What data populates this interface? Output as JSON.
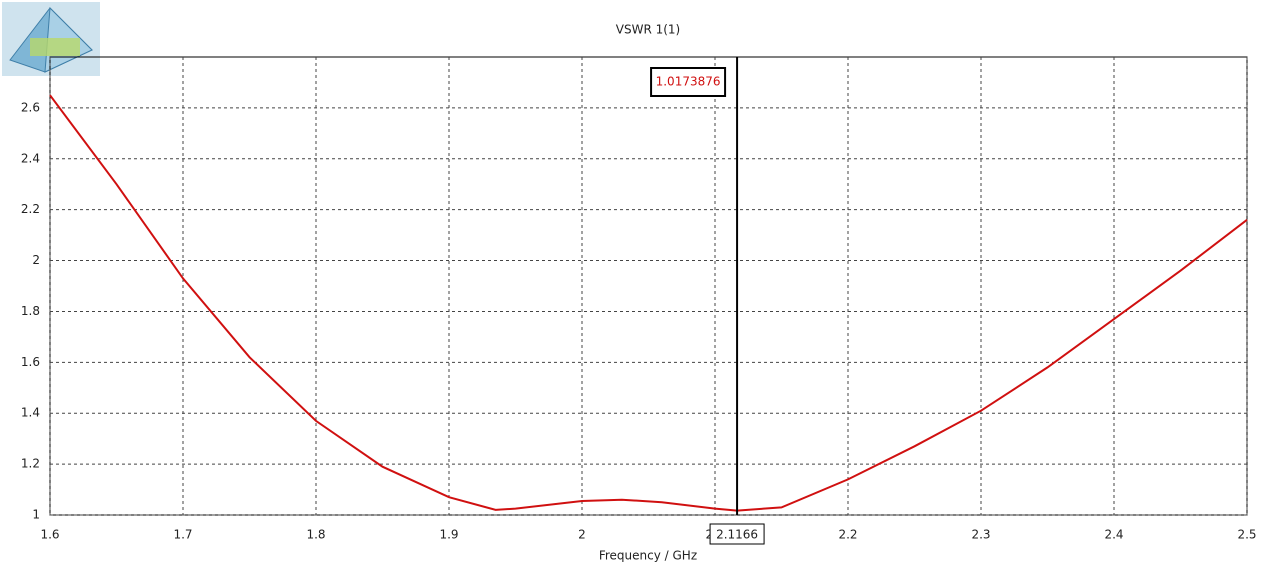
{
  "chart_data": {
    "type": "line",
    "title": "VSWR 1(1)",
    "x_label": "Frequency / GHz",
    "x": [
      1.6,
      1.65,
      1.7,
      1.75,
      1.8,
      1.85,
      1.9,
      1.935,
      1.95,
      2.0,
      2.03,
      2.06,
      2.1,
      2.1166,
      2.15,
      2.2,
      2.25,
      2.3,
      2.35,
      2.4,
      2.45,
      2.5
    ],
    "values": [
      2.65,
      2.3,
      1.93,
      1.62,
      1.37,
      1.19,
      1.07,
      1.02,
      1.025,
      1.055,
      1.06,
      1.05,
      1.025,
      1.0173876,
      1.03,
      1.14,
      1.27,
      1.41,
      1.58,
      1.77,
      1.96,
      2.16
    ],
    "color": "#d01010",
    "xlim": [
      1.6,
      2.5
    ],
    "xticks": [
      1.6,
      1.7,
      1.8,
      1.9,
      2,
      2.1,
      2.2,
      2.3,
      2.4,
      2.5
    ],
    "ylim": [
      1,
      2.8
    ],
    "yticks": [
      1,
      1.2,
      1.4,
      1.6,
      1.8,
      2,
      2.2,
      2.4,
      2.6
    ],
    "grid": true,
    "marker": {
      "x": 2.1166,
      "y": 1.0173876
    }
  }
}
